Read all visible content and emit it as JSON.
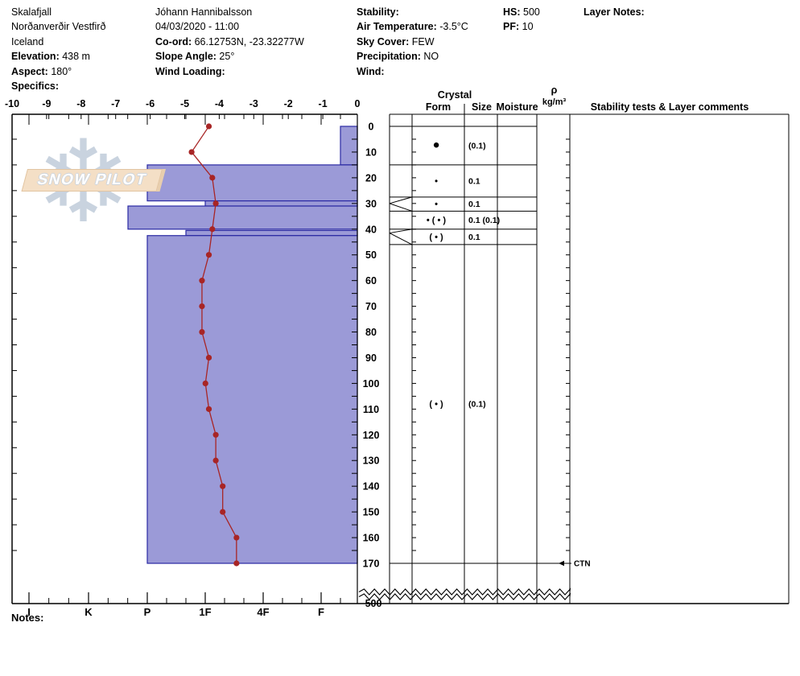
{
  "header": {
    "columns": [
      {
        "name": "location-info",
        "lines": [
          {
            "label": "",
            "value": "Skalafjall"
          },
          {
            "label": "",
            "value": "Norðanverðir Vestfirð"
          },
          {
            "label": "",
            "value": "Iceland"
          },
          {
            "label": "Elevation:",
            "value": "438 m"
          },
          {
            "label": "Aspect:",
            "value": "180°"
          },
          {
            "label": "Specifics:",
            "value": ""
          }
        ]
      },
      {
        "name": "observer-info",
        "lines": [
          {
            "label": "",
            "value": "Jóhann Hannibalsson"
          },
          {
            "label": "",
            "value": "04/03/2020 - 11:00"
          },
          {
            "label": "Co-ord:",
            "value": "66.12753N, -23.32277W"
          },
          {
            "label": "Slope Angle:",
            "value": "25°"
          },
          {
            "label": "Wind Loading:",
            "value": ""
          }
        ]
      },
      {
        "name": "weather-info",
        "lines": [
          {
            "label": "Stability:",
            "value": ""
          },
          {
            "label": "Air Temperature:",
            "value": "-3.5°C"
          },
          {
            "label": "Sky Cover:",
            "value": "FEW"
          },
          {
            "label": "Precipitation:",
            "value": "NO"
          },
          {
            "label": "Wind:",
            "value": ""
          }
        ]
      },
      {
        "name": "snowpack-info",
        "lines": [
          {
            "label": "HS:",
            "value": "500"
          },
          {
            "label": "PF:",
            "value": "10"
          }
        ]
      },
      {
        "name": "layer-notes",
        "lines": [
          {
            "label": "Layer Notes:",
            "value": ""
          }
        ]
      }
    ]
  },
  "logo": {
    "text": "SNOW PILOT",
    "flake_icon": "❄"
  },
  "footer": {
    "notes_label": "Notes:"
  },
  "chart_data": {
    "type": "snow-profile",
    "temp_axis": {
      "min": -10,
      "max": 0,
      "unit": "°C",
      "tick_labels": [
        "-10",
        "-9",
        "-8",
        "-7",
        "-6",
        "-5",
        "-4",
        "-3",
        "-2",
        "-1",
        "0"
      ]
    },
    "hardness_axis": {
      "tick_labels": [
        "I",
        "K",
        "P",
        "1F",
        "4F",
        "F"
      ]
    },
    "depth_axis": {
      "label_step_cm": 10,
      "pit_bottom_cm": 170,
      "total_depth_label": "500"
    },
    "temperature_profile": {
      "depths_cm": [
        0,
        10,
        20,
        30,
        40,
        50,
        60,
        70,
        80,
        90,
        100,
        110,
        120,
        130,
        140,
        150,
        160,
        170
      ],
      "temps_c": [
        -4.3,
        -4.8,
        -4.2,
        -4.1,
        -4.2,
        -4.3,
        -4.5,
        -4.5,
        -4.5,
        -4.3,
        -4.4,
        -4.3,
        -4.1,
        -4.1,
        -3.9,
        -3.9,
        -3.5,
        -3.5
      ]
    },
    "layers": [
      {
        "top_cm": 0,
        "bottom_cm": 15,
        "hardness": "F-",
        "grain_form": "●",
        "grain_size": "(0.1)",
        "row_top_cm": 0,
        "row_bottom_cm": 15,
        "large_form_symbol": true
      },
      {
        "top_cm": 15,
        "bottom_cm": 29,
        "hardness": "P",
        "grain_form": "•",
        "grain_size": "0.1",
        "row_top_cm": 15,
        "row_bottom_cm": 27.5
      },
      {
        "top_cm": 29,
        "bottom_cm": 31,
        "hardness": "1F",
        "grain_form": "•",
        "grain_size": "0.1",
        "row_top_cm": 27.5,
        "row_bottom_cm": 33,
        "wedge": true
      },
      {
        "top_cm": 31,
        "bottom_cm": 40,
        "hardness": "P+",
        "grain_form": "•  ( • )",
        "grain_size": "0.1 (0.1)",
        "row_top_cm": 33,
        "row_bottom_cm": 40
      },
      {
        "top_cm": 40.5,
        "bottom_cm": 42.5,
        "hardness": "1F+",
        "grain_form": "( • )",
        "grain_size": "0.1",
        "row_top_cm": 40,
        "row_bottom_cm": 46,
        "wedge": true
      },
      {
        "top_cm": 42.5,
        "bottom_cm": 170,
        "hardness": "P",
        "grain_form": "( • )",
        "grain_size": "(0.1)",
        "row_top_cm": 46,
        "row_bottom_cm": 170
      }
    ],
    "table_headers": {
      "crystal": "Crystal",
      "form": "Form",
      "size": "Size",
      "moisture": "Moisture",
      "rho": "ρ",
      "rho_unit": "kg/m³",
      "comments": "Stability tests & Layer comments"
    },
    "annotations": [
      {
        "depth_cm": 170,
        "text": "CTN"
      }
    ],
    "colors": {
      "bar_fill": "#9b9ad7",
      "bar_border": "#2a29a3",
      "temp_line": "#a82525",
      "axis": "#000000"
    }
  }
}
